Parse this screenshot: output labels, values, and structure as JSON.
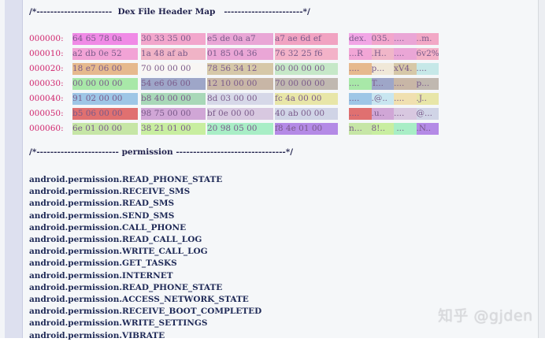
{
  "header_title": "/*----------------------  Dex File Header Map   -----------------------*/",
  "permission_title": "/*------------------------ permission --------------------------------*/",
  "hex_rows": [
    {
      "offset": "000000:",
      "groups": [
        "64 65 78 0a",
        "30 33 35 00",
        "e5 de 0a a7",
        "a7 ae 6d ef"
      ],
      "ascii": "dex.035.......m."
    },
    {
      "offset": "000010:",
      "groups": [
        "a2 db 0e 52",
        "1a 48 af ab",
        "01 85 04 36",
        "76 32 25 f6"
      ],
      "ascii": "...R.H......6v2%."
    },
    {
      "offset": "000020:",
      "groups": [
        "18 e7 06 00",
        "70 00 00 00",
        "78 56 34 12",
        "00 00 00 00"
      ],
      "ascii": "....p...xV4....."
    },
    {
      "offset": "000030:",
      "groups": [
        "00 00 00 00",
        "54 e6 06 00",
        "12 10 00 00",
        "70 00 00 00"
      ],
      "ascii": "....T.......p..."
    },
    {
      "offset": "000040:",
      "groups": [
        "91 02 00 00",
        "b8 40 00 00",
        "8d 03 00 00",
        "fc 4a 00 00"
      ],
      "ascii": ".....@.......J.."
    },
    {
      "offset": "000050:",
      "groups": [
        "b5 06 00 00",
        "98 75 00 00",
        "bf 0e 00 00",
        "40 ab 00 00"
      ],
      "ascii": ".....u......@..."
    },
    {
      "offset": "000060:",
      "groups": [
        "6e 01 00 00",
        "38 21 01 00",
        "20 98 05 00",
        "f8 4e 01 00"
      ],
      "ascii": "n...8!.. ....N.."
    }
  ],
  "permissions": [
    "android.permission.READ_PHONE_STATE",
    "android.permission.RECEIVE_SMS",
    "android.permission.READ_SMS",
    "android.permission.SEND_SMS",
    "android.permission.CALL_PHONE",
    "android.permission.READ_CALL_LOG",
    "android.permission.WRITE_CALL_LOG",
    "android.permission.GET_TASKS",
    "android.permission.INTERNET",
    "android.permission.READ_PHONE_STATE",
    "android.permission.ACCESS_NETWORK_STATE",
    "android.permission.RECEIVE_BOOT_COMPLETED",
    "android.permission.WRITE_SETTINGS",
    "android.permission.VIBRATE"
  ],
  "watermark": "知乎 @gjden",
  "colors": {
    "header_text": "#23244f",
    "offset_text": "#d0246c",
    "hex_text": "#7a5a8a",
    "permission_text": "#1f2a57"
  }
}
